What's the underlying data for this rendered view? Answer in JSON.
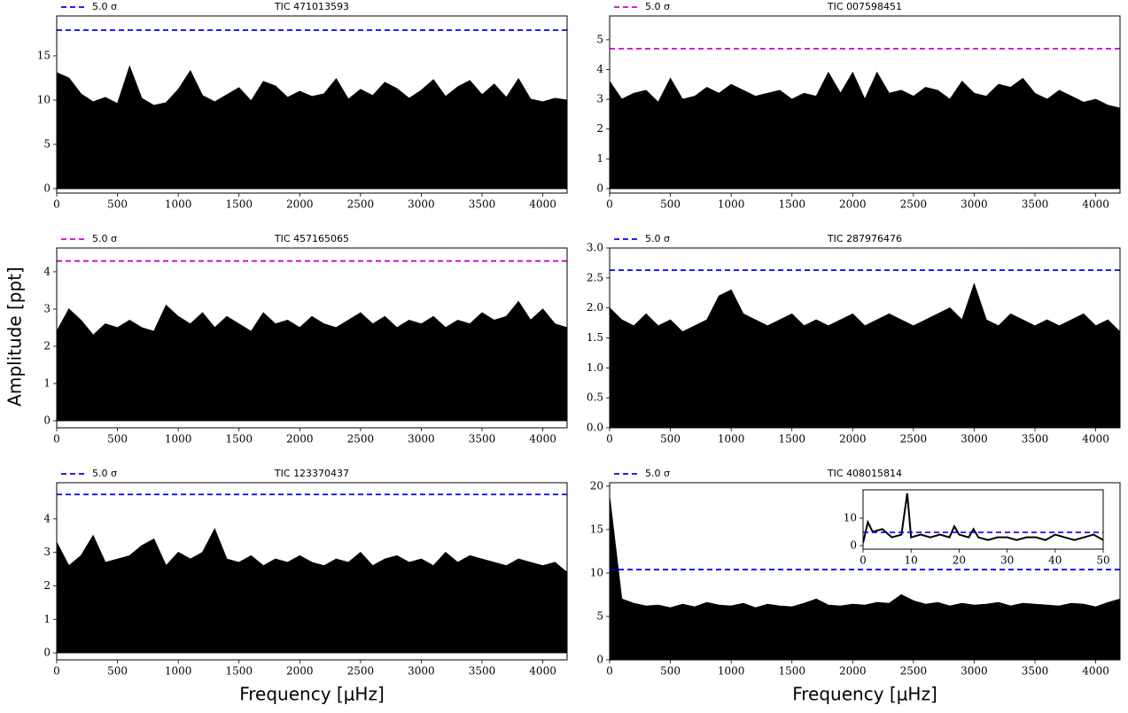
{
  "chart_data": [
    {
      "type": "area",
      "title": "TIC 471013593",
      "x": [
        0,
        100,
        200,
        300,
        400,
        500,
        600,
        700,
        800,
        900,
        1000,
        1100,
        1200,
        1300,
        1400,
        1500,
        1600,
        1700,
        1800,
        1900,
        2000,
        2100,
        2200,
        2300,
        2400,
        2500,
        2600,
        2700,
        2800,
        2900,
        3000,
        3100,
        3200,
        3300,
        3400,
        3500,
        3600,
        3700,
        3800,
        3900,
        4000,
        4100,
        4200
      ],
      "series": [
        {
          "color": "#000000",
          "values": [
            13.1,
            12.5,
            10.7,
            9.8,
            10.3,
            9.6,
            13.8,
            10.2,
            9.4,
            9.7,
            11.2,
            13.3,
            10.5,
            9.8,
            10.6,
            11.4,
            9.9,
            12.1,
            11.6,
            10.3,
            11.0,
            10.4,
            10.7,
            12.4,
            10.1,
            11.2,
            10.5,
            12.0,
            11.3,
            10.2,
            11.1,
            12.3,
            10.4,
            11.5,
            12.2,
            10.6,
            11.8,
            10.3,
            12.4,
            10.1,
            9.8,
            10.2,
            10.0
          ]
        }
      ],
      "threshold": {
        "label": "5.0 σ",
        "value": 17.9,
        "color": "#0000ff"
      },
      "xlim": [
        0,
        4200
      ],
      "xticks": [
        0,
        500,
        1000,
        1500,
        2000,
        2500,
        3000,
        3500,
        4000
      ],
      "ylim": [
        -0.5,
        19.5
      ],
      "yticks": [
        0,
        5,
        10,
        15
      ]
    },
    {
      "type": "area",
      "title": "TIC 007598451",
      "x": [
        0,
        100,
        200,
        300,
        400,
        500,
        600,
        700,
        800,
        900,
        1000,
        1100,
        1200,
        1300,
        1400,
        1500,
        1600,
        1700,
        1800,
        1900,
        2000,
        2100,
        2200,
        2300,
        2400,
        2500,
        2600,
        2700,
        2800,
        2900,
        3000,
        3100,
        3200,
        3300,
        3400,
        3500,
        3600,
        3700,
        3800,
        3900,
        4000,
        4100,
        4200
      ],
      "series": [
        {
          "color": "#000000",
          "values": [
            3.6,
            3.0,
            3.2,
            3.3,
            2.9,
            3.7,
            3.0,
            3.1,
            3.4,
            3.2,
            3.5,
            3.3,
            3.1,
            3.2,
            3.3,
            3.0,
            3.2,
            3.1,
            3.9,
            3.2,
            3.9,
            3.0,
            3.9,
            3.2,
            3.3,
            3.1,
            3.4,
            3.3,
            3.0,
            3.6,
            3.2,
            3.1,
            3.5,
            3.4,
            3.7,
            3.2,
            3.0,
            3.3,
            3.1,
            2.9,
            3.0,
            2.8,
            2.7
          ]
        }
      ],
      "threshold": {
        "label": "5.0 σ",
        "value": 4.7,
        "color": "#cc00cc"
      },
      "xlim": [
        0,
        4200
      ],
      "xticks": [
        0,
        500,
        1000,
        1500,
        2000,
        2500,
        3000,
        3500,
        4000
      ],
      "ylim": [
        -0.15,
        5.8
      ],
      "yticks": [
        0,
        1,
        2,
        3,
        4,
        5
      ]
    },
    {
      "type": "area",
      "title": "TIC 457165065",
      "ylabel": "Amplitude [ppt]",
      "x": [
        0,
        100,
        200,
        300,
        400,
        500,
        600,
        700,
        800,
        900,
        1000,
        1100,
        1200,
        1300,
        1400,
        1500,
        1600,
        1700,
        1800,
        1900,
        2000,
        2100,
        2200,
        2300,
        2400,
        2500,
        2600,
        2700,
        2800,
        2900,
        3000,
        3100,
        3200,
        3300,
        3400,
        3500,
        3600,
        3700,
        3800,
        3900,
        4000,
        4100,
        4200
      ],
      "series": [
        {
          "color": "#000000",
          "values": [
            2.4,
            3.0,
            2.7,
            2.3,
            2.6,
            2.5,
            2.7,
            2.5,
            2.4,
            3.1,
            2.8,
            2.6,
            2.9,
            2.5,
            2.8,
            2.6,
            2.4,
            2.9,
            2.6,
            2.7,
            2.5,
            2.8,
            2.6,
            2.5,
            2.7,
            2.9,
            2.6,
            2.8,
            2.5,
            2.7,
            2.6,
            2.8,
            2.5,
            2.7,
            2.6,
            2.9,
            2.7,
            2.8,
            3.2,
            2.7,
            3.0,
            2.6,
            2.5
          ]
        }
      ],
      "threshold": {
        "label": "5.0 σ",
        "value": 4.29,
        "color": "#cc00cc"
      },
      "xlim": [
        0,
        4200
      ],
      "xticks": [
        0,
        500,
        1000,
        1500,
        2000,
        2500,
        3000,
        3500,
        4000
      ],
      "ylim": [
        -0.19,
        4.64
      ],
      "yticks": [
        0,
        1,
        2,
        3,
        4
      ]
    },
    {
      "type": "area",
      "title": "TIC 287976476",
      "x": [
        0,
        100,
        200,
        300,
        400,
        500,
        600,
        700,
        800,
        900,
        1000,
        1100,
        1200,
        1300,
        1400,
        1500,
        1600,
        1700,
        1800,
        1900,
        2000,
        2100,
        2200,
        2300,
        2400,
        2500,
        2600,
        2700,
        2800,
        2900,
        3000,
        3100,
        3200,
        3300,
        3400,
        3500,
        3600,
        3700,
        3800,
        3900,
        4000,
        4100,
        4200
      ],
      "series": [
        {
          "color": "#000000",
          "values": [
            2.0,
            1.8,
            1.7,
            1.9,
            1.7,
            1.8,
            1.6,
            1.7,
            1.8,
            2.2,
            2.3,
            1.9,
            1.8,
            1.7,
            1.8,
            1.9,
            1.7,
            1.8,
            1.7,
            1.8,
            1.9,
            1.7,
            1.8,
            1.9,
            1.8,
            1.7,
            1.8,
            1.9,
            2.0,
            1.8,
            2.4,
            1.8,
            1.7,
            1.9,
            1.8,
            1.7,
            1.8,
            1.7,
            1.8,
            1.9,
            1.7,
            1.8,
            1.6
          ]
        }
      ],
      "threshold": {
        "label": "5.0 σ",
        "value": 2.63,
        "color": "#0000ff"
      },
      "xlim": [
        0,
        4200
      ],
      "xticks": [
        0,
        500,
        1000,
        1500,
        2000,
        2500,
        3000,
        3500,
        4000
      ],
      "ylim": [
        0,
        3
      ],
      "yticks": [
        {
          "value": 0,
          "label": "0.0"
        },
        {
          "value": 0.5,
          "label": "0.5"
        },
        {
          "value": 1,
          "label": "1.0"
        },
        {
          "value": 1.5,
          "label": "1.5"
        },
        {
          "value": 2,
          "label": "2.0"
        },
        {
          "value": 2.5,
          "label": "2.5"
        },
        {
          "value": 3,
          "label": "3.0"
        }
      ]
    },
    {
      "type": "area",
      "title": "TIC 123370437",
      "xlabel": "Frequency [μHz]",
      "x": [
        0,
        100,
        200,
        300,
        400,
        500,
        600,
        700,
        800,
        900,
        1000,
        1100,
        1200,
        1300,
        1400,
        1500,
        1600,
        1700,
        1800,
        1900,
        2000,
        2100,
        2200,
        2300,
        2400,
        2500,
        2600,
        2700,
        2800,
        2900,
        3000,
        3100,
        3200,
        3300,
        3400,
        3500,
        3600,
        3700,
        3800,
        3900,
        4000,
        4100,
        4200
      ],
      "series": [
        {
          "color": "#000000",
          "values": [
            3.3,
            2.6,
            2.9,
            3.5,
            2.7,
            2.8,
            2.9,
            3.2,
            3.4,
            2.6,
            3.0,
            2.8,
            3.0,
            3.7,
            2.8,
            2.7,
            2.9,
            2.6,
            2.8,
            2.7,
            2.9,
            2.7,
            2.6,
            2.8,
            2.7,
            3.0,
            2.6,
            2.8,
            2.9,
            2.7,
            2.8,
            2.6,
            3.0,
            2.7,
            2.9,
            2.8,
            2.7,
            2.6,
            2.8,
            2.7,
            2.6,
            2.7,
            2.4
          ]
        }
      ],
      "threshold": {
        "label": "5.0 σ",
        "value": 4.73,
        "color": "#0000ff"
      },
      "xlim": [
        0,
        4200
      ],
      "xticks": [
        0,
        500,
        1000,
        1500,
        2000,
        2500,
        3000,
        3500,
        4000
      ],
      "ylim": [
        -0.21,
        5.08
      ],
      "yticks": [
        0,
        1,
        2,
        3,
        4
      ]
    },
    {
      "type": "area",
      "title": "TIC 408015814",
      "xlabel": "Frequency [μHz]",
      "x": [
        0,
        100,
        200,
        300,
        400,
        500,
        600,
        700,
        800,
        900,
        1000,
        1100,
        1200,
        1300,
        1400,
        1500,
        1600,
        1700,
        1800,
        1900,
        2000,
        2100,
        2200,
        2300,
        2400,
        2500,
        2600,
        2700,
        2800,
        2900,
        3000,
        3100,
        3200,
        3300,
        3400,
        3500,
        3600,
        3700,
        3800,
        3900,
        4000,
        4100,
        4200
      ],
      "series": [
        {
          "color": "#000000",
          "values": [
            18.8,
            7.0,
            6.5,
            6.2,
            6.3,
            6.0,
            6.4,
            6.1,
            6.6,
            6.3,
            6.2,
            6.5,
            6.0,
            6.4,
            6.2,
            6.1,
            6.5,
            7.0,
            6.3,
            6.2,
            6.4,
            6.3,
            6.6,
            6.5,
            7.5,
            6.8,
            6.4,
            6.6,
            6.2,
            6.5,
            6.3,
            6.4,
            6.6,
            6.2,
            6.5,
            6.4,
            6.3,
            6.2,
            6.5,
            6.4,
            6.1,
            6.6,
            7.0
          ]
        }
      ],
      "threshold": {
        "label": "5.0 σ",
        "value": 10.4,
        "color": "#0000ff"
      },
      "xlim": [
        0,
        4200
      ],
      "xticks": [
        0,
        500,
        1000,
        1500,
        2000,
        2500,
        3000,
        3500,
        4000
      ],
      "ylim": [
        0,
        20.4
      ],
      "yticks": [
        0,
        5,
        10,
        15,
        20
      ],
      "inset": {
        "x": [
          0,
          1,
          2,
          4,
          6,
          8,
          9.2,
          10,
          12,
          14,
          16,
          18,
          19,
          20,
          22,
          23,
          24,
          26,
          28,
          30,
          32,
          34,
          36,
          38,
          40,
          42,
          44,
          46,
          48,
          50
        ],
        "values": [
          1,
          8.5,
          5,
          6,
          3,
          4,
          19,
          3,
          4,
          3,
          4,
          3,
          7,
          4,
          3,
          6,
          3,
          2,
          3,
          3,
          2,
          3,
          3,
          2,
          4,
          3,
          2,
          3,
          4,
          2
        ],
        "color": "#000000",
        "threshold": 4.8,
        "threshold_color": "#0000ff",
        "xlim": [
          0,
          50
        ],
        "xticks": [
          0,
          10,
          20,
          30,
          40,
          50
        ],
        "ylim": [
          -1.3,
          20.3
        ],
        "yticks": [
          0,
          10
        ]
      }
    }
  ]
}
